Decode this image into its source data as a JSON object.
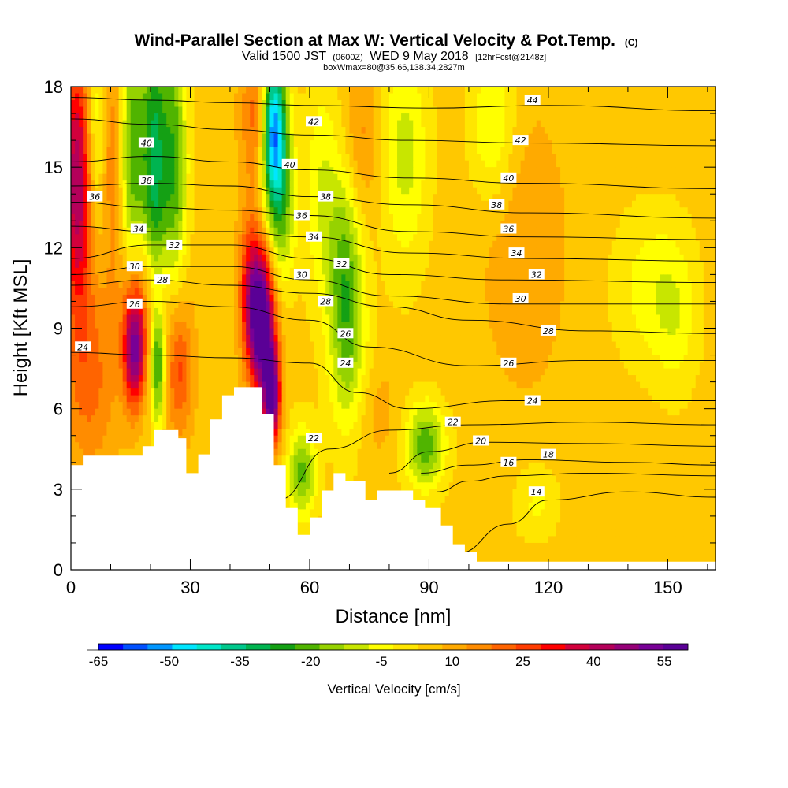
{
  "chart_data": {
    "type": "heatmap",
    "title": "Wind-Parallel Section at Max W: Vertical Velocity & Pot.Temp.",
    "title_mark": "(C)",
    "subtitle": {
      "valid": "Valid 1500 JST",
      "zulu": "(0600Z)",
      "date": "WED 9 May 2018",
      "forecast": "[12hrFcst@2148z]"
    },
    "subtitle2": "boxWmax=80@35.66,138.34,2827m",
    "xlabel": "Distance [nm]",
    "ylabel": "Height [Kft MSL]",
    "xlim": [
      0,
      162
    ],
    "ylim": [
      0,
      18
    ],
    "x_ticks": [
      0,
      30,
      60,
      90,
      120,
      150
    ],
    "y_ticks": [
      0,
      3,
      6,
      9,
      12,
      15,
      18
    ],
    "colorbar": {
      "label": "Vertical Velocity [cm/s]",
      "range": [
        -65,
        60
      ],
      "step": 5,
      "tick_labels": [
        -65,
        -50,
        -35,
        -20,
        -5,
        10,
        25,
        40,
        55
      ],
      "colors": [
        "#0000ff",
        "#0050ff",
        "#0096ff",
        "#00e6ff",
        "#00e6c8",
        "#00c88c",
        "#00b450",
        "#14a014",
        "#50b400",
        "#96d200",
        "#c8e600",
        "#ffff00",
        "#ffe600",
        "#ffc800",
        "#ffaa00",
        "#ff8c00",
        "#ff6400",
        "#ff3c00",
        "#ff0000",
        "#d2003c",
        "#b4005a",
        "#960078",
        "#780096",
        "#5a0096"
      ]
    },
    "terrain": [
      [
        0,
        3.9
      ],
      [
        3,
        3.9
      ],
      [
        3,
        4.25
      ],
      [
        18,
        4.25
      ],
      [
        18,
        4.6
      ],
      [
        21,
        4.6
      ],
      [
        21,
        5.2
      ],
      [
        27,
        5.2
      ],
      [
        27,
        4.9
      ],
      [
        29,
        4.9
      ],
      [
        29,
        3.6
      ],
      [
        32,
        3.6
      ],
      [
        32,
        4.3
      ],
      [
        35,
        4.3
      ],
      [
        35,
        5.6
      ],
      [
        38,
        5.6
      ],
      [
        38,
        6.5
      ],
      [
        41,
        6.5
      ],
      [
        41,
        6.8
      ],
      [
        48,
        6.8
      ],
      [
        48,
        5.8
      ],
      [
        51,
        5.8
      ],
      [
        51,
        3.9
      ],
      [
        54,
        3.9
      ],
      [
        54,
        2.3
      ],
      [
        57,
        2.3
      ],
      [
        57,
        1.3
      ],
      [
        60,
        1.3
      ],
      [
        60,
        1.95
      ],
      [
        63,
        1.95
      ],
      [
        63,
        2.95
      ],
      [
        66,
        2.95
      ],
      [
        66,
        3.6
      ],
      [
        69,
        3.6
      ],
      [
        69,
        3.3
      ],
      [
        74,
        3.3
      ],
      [
        74,
        2.6
      ],
      [
        77,
        2.6
      ],
      [
        77,
        2.95
      ],
      [
        86,
        2.95
      ],
      [
        86,
        2.6
      ],
      [
        89,
        2.6
      ],
      [
        89,
        2.3
      ],
      [
        93,
        2.3
      ],
      [
        93,
        1.65
      ],
      [
        96,
        1.65
      ],
      [
        96,
        0.95
      ],
      [
        99,
        0.95
      ],
      [
        99,
        0.65
      ],
      [
        102,
        0.65
      ],
      [
        102,
        0.3
      ],
      [
        162,
        0.3
      ]
    ],
    "w_cells": [
      {
        "x": 2,
        "y": 14.5,
        "w": 40,
        "sx": 3,
        "sy": 3.5
      },
      {
        "x": 6,
        "y": 16,
        "w": -22,
        "sx": 2.2,
        "sy": 3
      },
      {
        "x": 11,
        "y": 15.5,
        "w": 18,
        "sx": 2.5,
        "sy": 3
      },
      {
        "x": 15,
        "y": 15.5,
        "w": -28,
        "sx": 2.5,
        "sy": 3.5
      },
      {
        "x": 21,
        "y": 15,
        "w": -32,
        "sx": 2.2,
        "sy": 4.5
      },
      {
        "x": 26,
        "y": 15,
        "w": -25,
        "sx": 2.2,
        "sy": 4
      },
      {
        "x": 19,
        "y": 10.5,
        "w": 14,
        "sx": 5,
        "sy": 1.5
      },
      {
        "x": 5,
        "y": 7,
        "w": 14,
        "sx": 5,
        "sy": 2.5
      },
      {
        "x": 16,
        "y": 8.2,
        "w": 46,
        "sx": 2,
        "sy": 1.5
      },
      {
        "x": 22,
        "y": 7.5,
        "w": -24,
        "sx": 1.2,
        "sy": 1.5
      },
      {
        "x": 27,
        "y": 7.5,
        "w": 22,
        "sx": 2.5,
        "sy": 1.8
      },
      {
        "x": 47,
        "y": 17,
        "w": 18,
        "sx": 3,
        "sy": 1.8
      },
      {
        "x": 51,
        "y": 16.5,
        "w": -58,
        "sx": 2.2,
        "sy": 2
      },
      {
        "x": 53,
        "y": 13.5,
        "w": -20,
        "sx": 2.5,
        "sy": 2
      },
      {
        "x": 48,
        "y": 9.2,
        "w": 58,
        "sx": 2.2,
        "sy": 1.8
      },
      {
        "x": 50.5,
        "y": 6.5,
        "w": 52,
        "sx": 1.5,
        "sy": 1.3
      },
      {
        "x": 45,
        "y": 10.5,
        "w": 25,
        "sx": 2,
        "sy": 2
      },
      {
        "x": 58,
        "y": 3.6,
        "w": -24,
        "sx": 2.5,
        "sy": 1.2
      },
      {
        "x": 69,
        "y": 10.5,
        "w": -26,
        "sx": 3,
        "sy": 3
      },
      {
        "x": 63,
        "y": 14,
        "w": -12,
        "sx": 3,
        "sy": 3
      },
      {
        "x": 72,
        "y": 7,
        "w": -8,
        "sx": 4,
        "sy": 2
      },
      {
        "x": 84,
        "y": 15.5,
        "w": -14,
        "sx": 4,
        "sy": 3
      },
      {
        "x": 89,
        "y": 4.6,
        "w": -26,
        "sx": 3.5,
        "sy": 1.1
      },
      {
        "x": 76,
        "y": 6,
        "w": 8,
        "sx": 4,
        "sy": 1.5
      },
      {
        "x": 106,
        "y": 16.5,
        "w": -14,
        "sx": 4,
        "sy": 2
      },
      {
        "x": 73,
        "y": 16,
        "w": 10,
        "sx": 3,
        "sy": 2
      },
      {
        "x": 145,
        "y": 10.5,
        "w": -9,
        "sx": 6,
        "sy": 2
      },
      {
        "x": 152,
        "y": 9.5,
        "w": -9,
        "sx": 4,
        "sy": 2
      },
      {
        "x": 114,
        "y": 12,
        "w": 7,
        "sx": 8,
        "sy": 4
      },
      {
        "x": 117,
        "y": 2.5,
        "w": -8,
        "sx": 4,
        "sy": 1
      }
    ],
    "theta_contours": [
      {
        "value": 14,
        "points": [
          [
            97,
            0.6
          ],
          [
            110,
            1.7
          ],
          [
            120,
            2.6
          ],
          [
            140,
            2.9
          ],
          [
            162,
            2.7
          ]
        ]
      },
      {
        "value": 16,
        "points": [
          [
            92,
            2.9
          ],
          [
            100,
            3.3
          ],
          [
            110,
            3.5
          ],
          [
            130,
            3.6
          ],
          [
            162,
            3.5
          ]
        ]
      },
      {
        "value": 18,
        "points": [
          [
            88,
            3.6
          ],
          [
            100,
            3.9
          ],
          [
            115,
            4.1
          ],
          [
            140,
            4.0
          ],
          [
            162,
            3.9
          ]
        ]
      },
      {
        "value": 20,
        "points": [
          [
            80,
            3.6
          ],
          [
            90,
            4.4
          ],
          [
            104,
            4.75
          ],
          [
            130,
            4.7
          ],
          [
            162,
            4.6
          ]
        ]
      },
      {
        "value": 22,
        "points": [
          [
            52,
            2.6
          ],
          [
            65,
            4.5
          ],
          [
            80,
            5.2
          ],
          [
            100,
            5.4
          ],
          [
            130,
            5.5
          ],
          [
            162,
            5.4
          ]
        ]
      },
      {
        "value": 24,
        "points": [
          [
            0,
            8.1
          ],
          [
            20,
            8.0
          ],
          [
            40,
            7.9
          ],
          [
            60,
            7.7
          ],
          [
            72,
            6.6
          ],
          [
            85,
            6.0
          ],
          [
            110,
            6.3
          ],
          [
            162,
            6.3
          ]
        ]
      },
      {
        "value": 26,
        "points": [
          [
            0,
            9.8
          ],
          [
            20,
            10.0
          ],
          [
            40,
            9.8
          ],
          [
            60,
            9.3
          ],
          [
            75,
            8.3
          ],
          [
            100,
            7.6
          ],
          [
            130,
            7.8
          ],
          [
            162,
            7.8
          ]
        ]
      },
      {
        "value": 28,
        "points": [
          [
            0,
            10.6
          ],
          [
            20,
            10.8
          ],
          [
            40,
            10.6
          ],
          [
            60,
            10.3
          ],
          [
            80,
            9.8
          ],
          [
            100,
            9.3
          ],
          [
            130,
            8.9
          ],
          [
            162,
            8.8
          ]
        ]
      },
      {
        "value": 30,
        "points": [
          [
            0,
            11.0
          ],
          [
            20,
            11.3
          ],
          [
            40,
            11.3
          ],
          [
            60,
            10.8
          ],
          [
            80,
            10.2
          ],
          [
            110,
            9.9
          ],
          [
            162,
            9.9
          ]
        ]
      },
      {
        "value": 32,
        "points": [
          [
            0,
            11.6
          ],
          [
            20,
            12.1
          ],
          [
            40,
            12.1
          ],
          [
            60,
            11.6
          ],
          [
            80,
            11.0
          ],
          [
            110,
            10.8
          ],
          [
            162,
            10.7
          ]
        ]
      },
      {
        "value": 34,
        "points": [
          [
            0,
            12.8
          ],
          [
            20,
            12.6
          ],
          [
            40,
            12.6
          ],
          [
            60,
            12.4
          ],
          [
            85,
            11.8
          ],
          [
            115,
            11.6
          ],
          [
            162,
            11.5
          ]
        ]
      },
      {
        "value": 36,
        "points": [
          [
            0,
            13.7
          ],
          [
            20,
            13.5
          ],
          [
            40,
            13.4
          ],
          [
            60,
            13.2
          ],
          [
            85,
            12.6
          ],
          [
            115,
            12.4
          ],
          [
            162,
            12.3
          ]
        ]
      },
      {
        "value": 38,
        "points": [
          [
            0,
            14.3
          ],
          [
            20,
            14.4
          ],
          [
            40,
            14.3
          ],
          [
            60,
            13.9
          ],
          [
            85,
            13.6
          ],
          [
            115,
            13.3
          ],
          [
            162,
            13.1
          ]
        ]
      },
      {
        "value": 40,
        "points": [
          [
            0,
            15.2
          ],
          [
            20,
            15.4
          ],
          [
            40,
            15.2
          ],
          [
            60,
            14.9
          ],
          [
            85,
            14.6
          ],
          [
            115,
            14.4
          ],
          [
            162,
            14.2
          ]
        ]
      },
      {
        "value": 42,
        "points": [
          [
            0,
            16.8
          ],
          [
            20,
            16.6
          ],
          [
            40,
            16.4
          ],
          [
            60,
            16.2
          ],
          [
            85,
            16.0
          ],
          [
            115,
            15.9
          ],
          [
            162,
            15.8
          ]
        ]
      },
      {
        "value": 44,
        "points": [
          [
            0,
            17.6
          ],
          [
            20,
            17.5
          ],
          [
            40,
            17.4
          ],
          [
            60,
            17.3
          ],
          [
            90,
            17.2
          ],
          [
            120,
            17.3
          ],
          [
            162,
            17.1
          ]
        ]
      }
    ],
    "contour_labels": [
      {
        "text": "44",
        "x": 116,
        "y": 17.5
      },
      {
        "text": "42",
        "x": 61,
        "y": 16.7
      },
      {
        "text": "42",
        "x": 113,
        "y": 16.0
      },
      {
        "text": "40",
        "x": 19,
        "y": 15.9
      },
      {
        "text": "40",
        "x": 55,
        "y": 15.1
      },
      {
        "text": "40",
        "x": 110,
        "y": 14.6
      },
      {
        "text": "38",
        "x": 19,
        "y": 14.5
      },
      {
        "text": "38",
        "x": 64,
        "y": 13.9
      },
      {
        "text": "38",
        "x": 107,
        "y": 13.6
      },
      {
        "text": "36",
        "x": 6,
        "y": 13.9
      },
      {
        "text": "36",
        "x": 58,
        "y": 13.2
      },
      {
        "text": "36",
        "x": 110,
        "y": 12.7
      },
      {
        "text": "34",
        "x": 17,
        "y": 12.7
      },
      {
        "text": "34",
        "x": 61,
        "y": 12.4
      },
      {
        "text": "34",
        "x": 112,
        "y": 11.8
      },
      {
        "text": "32",
        "x": 26,
        "y": 12.1
      },
      {
        "text": "32",
        "x": 68,
        "y": 11.4
      },
      {
        "text": "32",
        "x": 117,
        "y": 11.0
      },
      {
        "text": "30",
        "x": 16,
        "y": 11.3
      },
      {
        "text": "30",
        "x": 58,
        "y": 11.0
      },
      {
        "text": "30",
        "x": 113,
        "y": 10.1
      },
      {
        "text": "28",
        "x": 23,
        "y": 10.8
      },
      {
        "text": "28",
        "x": 64,
        "y": 10.0
      },
      {
        "text": "28",
        "x": 120,
        "y": 8.9
      },
      {
        "text": "26",
        "x": 16,
        "y": 9.9
      },
      {
        "text": "26",
        "x": 69,
        "y": 8.8
      },
      {
        "text": "26",
        "x": 110,
        "y": 7.7
      },
      {
        "text": "24",
        "x": 3,
        "y": 8.3
      },
      {
        "text": "24",
        "x": 69,
        "y": 7.7
      },
      {
        "text": "24",
        "x": 116,
        "y": 6.3
      },
      {
        "text": "22",
        "x": 61,
        "y": 4.9
      },
      {
        "text": "22",
        "x": 96,
        "y": 5.5
      },
      {
        "text": "20",
        "x": 103,
        "y": 4.8
      },
      {
        "text": "18",
        "x": 120,
        "y": 4.3
      },
      {
        "text": "16",
        "x": 110,
        "y": 4.0
      },
      {
        "text": "14",
        "x": 117,
        "y": 2.9
      }
    ]
  }
}
